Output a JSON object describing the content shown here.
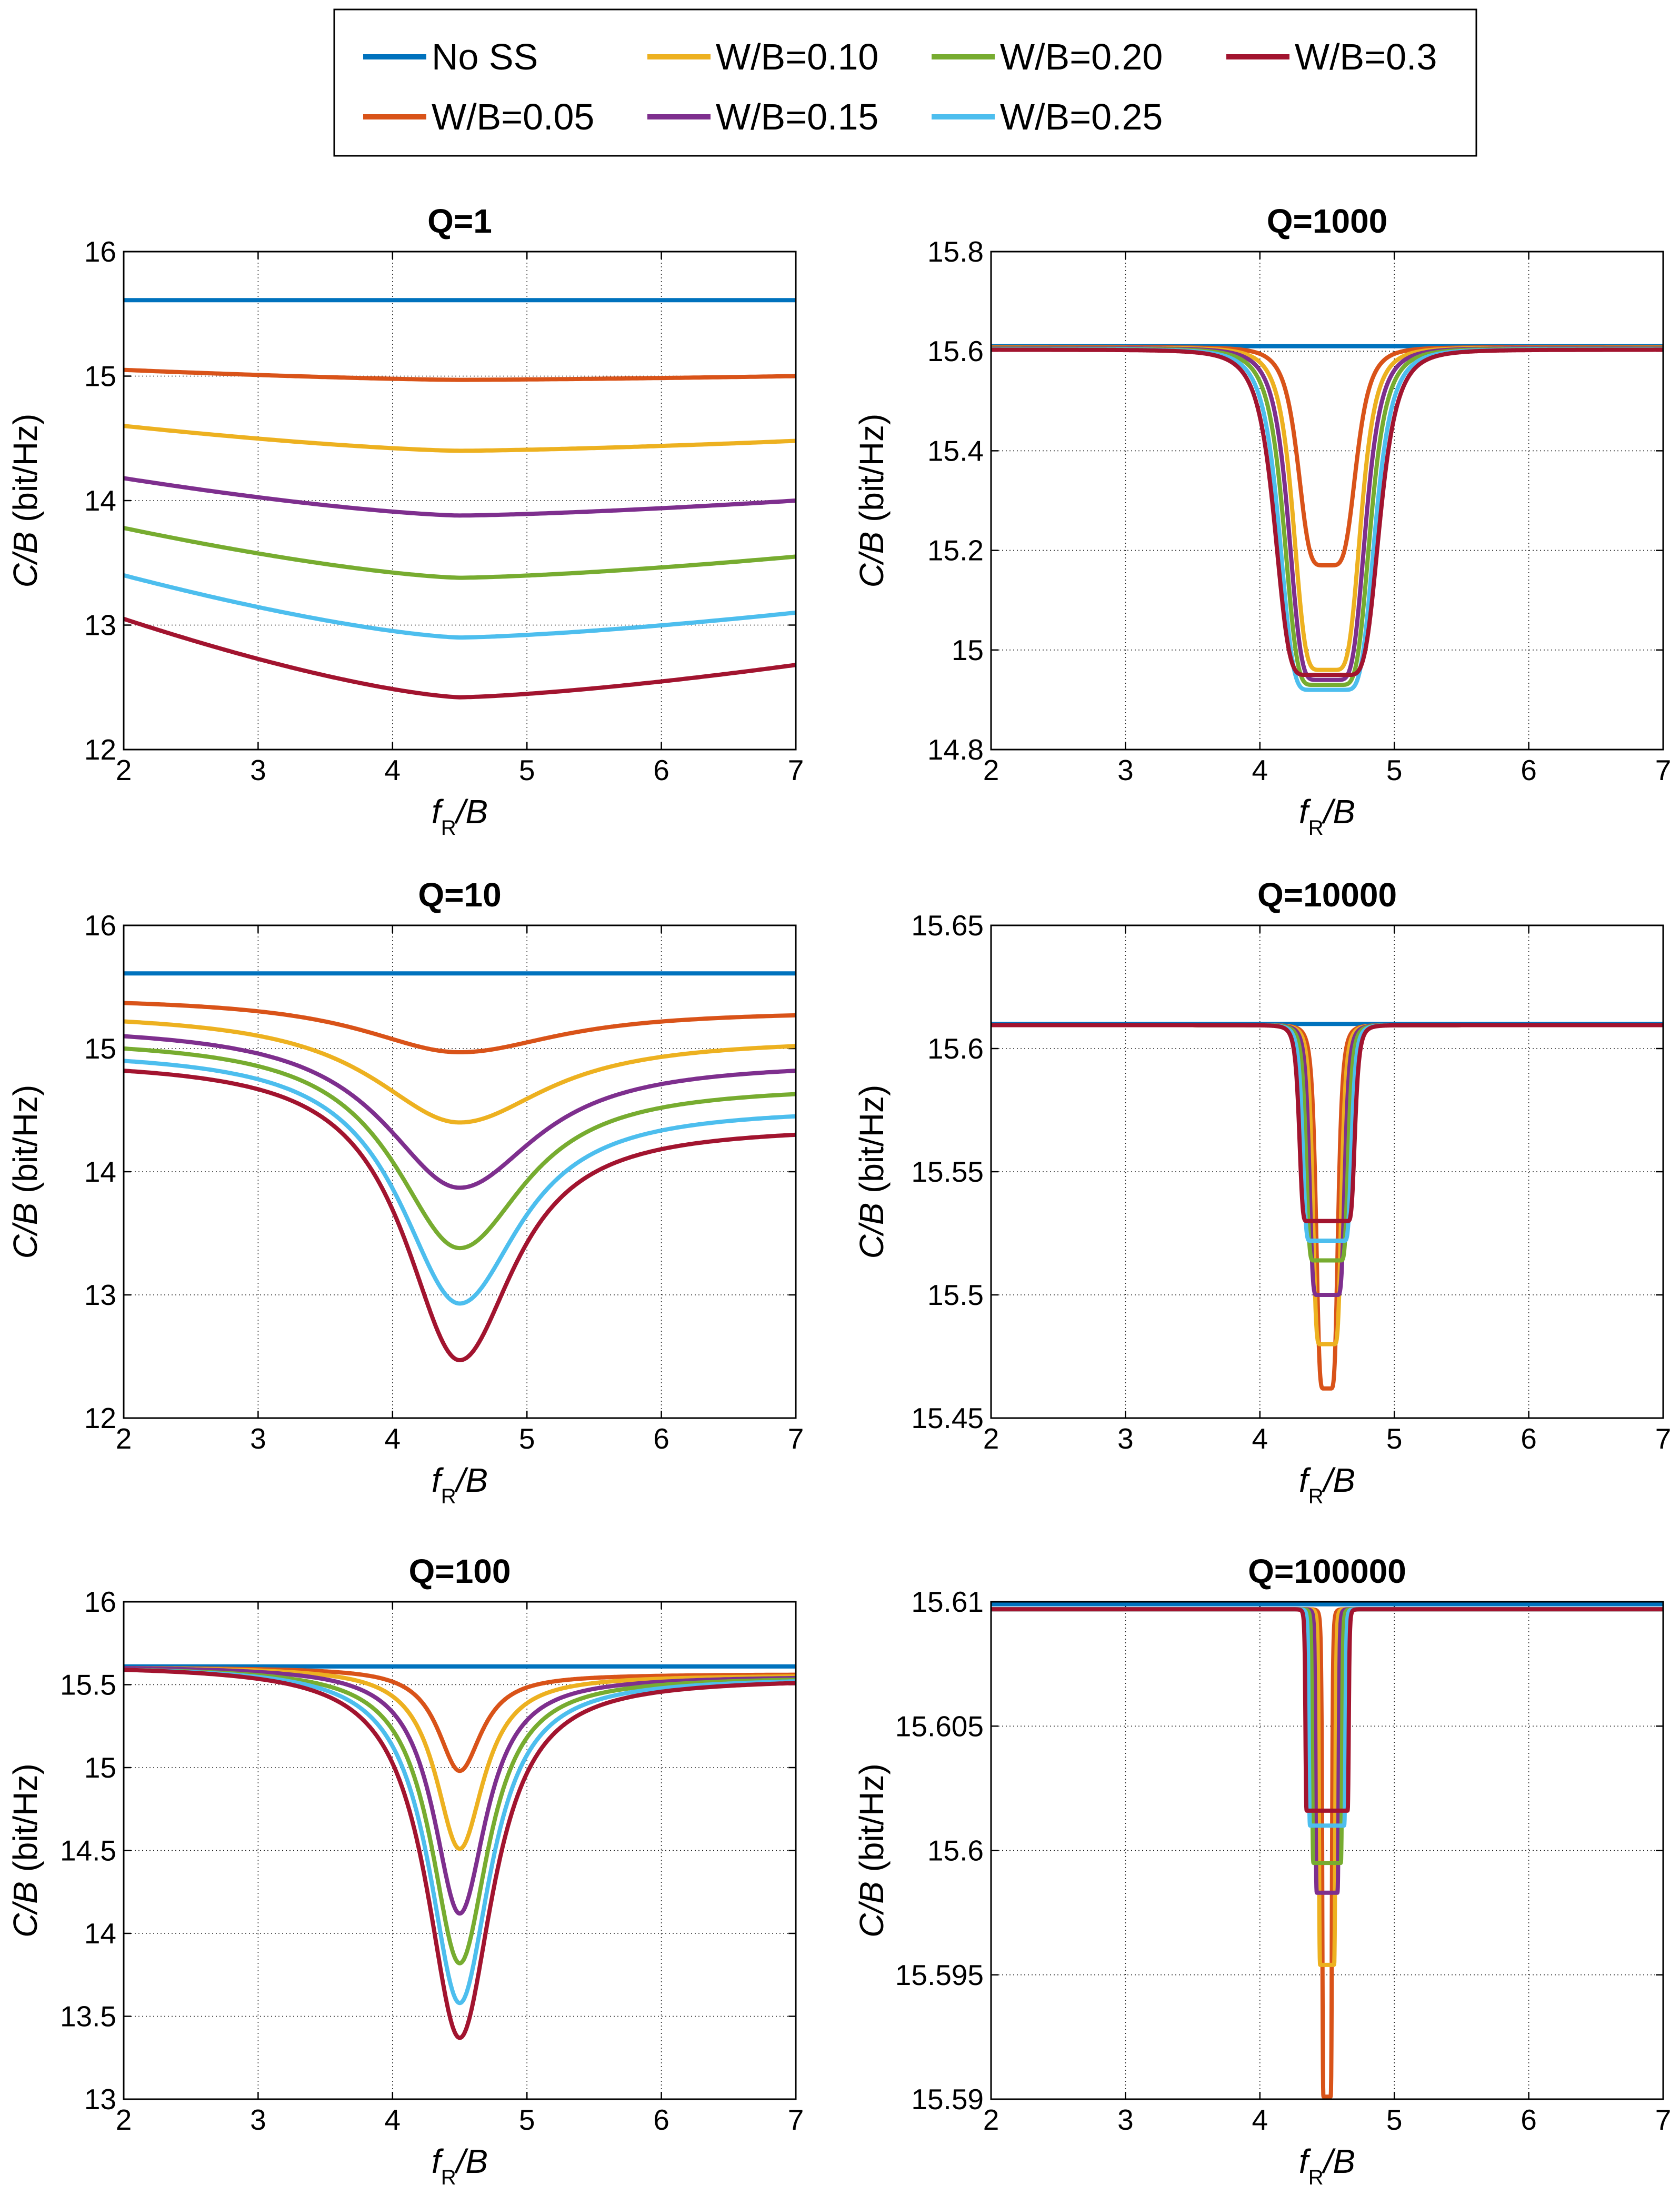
{
  "legend": {
    "entries": [
      {
        "label": "No SS",
        "color": "#0072BD"
      },
      {
        "label": "W/B=0.10",
        "color": "#EDB120"
      },
      {
        "label": "W/B=0.20",
        "color": "#77AC30"
      },
      {
        "label": "W/B=0.3",
        "color": "#A2142F"
      },
      {
        "label": "W/B=0.05",
        "color": "#D95319"
      },
      {
        "label": "W/B=0.15",
        "color": "#7E2F8E"
      },
      {
        "label": "W/B=0.25",
        "color": "#4DBEEE"
      }
    ]
  },
  "chart_data": [
    {
      "type": "line",
      "title": "Q=1",
      "xlabel": "f_R/B",
      "ylabel": "C/B (bit/Hz)",
      "xlim": [
        2,
        7
      ],
      "ylim": [
        12,
        16
      ],
      "xticks": [
        "2",
        "3",
        "4",
        "5",
        "6",
        "7"
      ],
      "yticks": [
        "12",
        "13",
        "14",
        "15",
        "16"
      ],
      "grid": true,
      "series": [
        {
          "name": "No SS",
          "shape": "flat",
          "level": 15.61
        },
        {
          "name": "W/B=0.05",
          "shape": "broad",
          "left": 15.05,
          "min": 14.97,
          "right": 15.0
        },
        {
          "name": "W/B=0.10",
          "shape": "broad",
          "left": 14.6,
          "min": 14.4,
          "right": 14.48
        },
        {
          "name": "W/B=0.15",
          "shape": "broad",
          "left": 14.18,
          "min": 13.88,
          "right": 14.0
        },
        {
          "name": "W/B=0.20",
          "shape": "broad",
          "left": 13.78,
          "min": 13.38,
          "right": 13.55
        },
        {
          "name": "W/B=0.25",
          "shape": "broad",
          "left": 13.4,
          "min": 12.9,
          "right": 13.1
        },
        {
          "name": "W/B=0.3",
          "shape": "broad",
          "left": 13.05,
          "min": 12.42,
          "right": 12.68
        }
      ]
    },
    {
      "type": "line",
      "title": "Q=1000",
      "xlabel": "f_R/B",
      "ylabel": "C/B (bit/Hz)",
      "xlim": [
        2,
        7
      ],
      "ylim": [
        14.8,
        15.8
      ],
      "xticks": [
        "2",
        "3",
        "4",
        "5",
        "6",
        "7"
      ],
      "yticks": [
        "14.8",
        "15",
        "15.2",
        "15.4",
        "15.6",
        "15.8"
      ],
      "grid": true,
      "series": [
        {
          "name": "No SS",
          "shape": "flat",
          "level": 15.61
        },
        {
          "name": "W/B=0.05",
          "shape": "notch",
          "base": 15.608,
          "min": 15.17,
          "halfwidth": 0.025,
          "width": 0.2
        },
        {
          "name": "W/B=0.10",
          "shape": "notch",
          "base": 15.607,
          "min": 14.96,
          "halfwidth": 0.05,
          "width": 0.21
        },
        {
          "name": "W/B=0.15",
          "shape": "notch",
          "base": 15.606,
          "min": 14.94,
          "halfwidth": 0.075,
          "width": 0.22
        },
        {
          "name": "W/B=0.20",
          "shape": "notch",
          "base": 15.605,
          "min": 14.93,
          "halfwidth": 0.1,
          "width": 0.23
        },
        {
          "name": "W/B=0.25",
          "shape": "notch",
          "base": 15.604,
          "min": 14.92,
          "halfwidth": 0.125,
          "width": 0.24
        },
        {
          "name": "W/B=0.3",
          "shape": "notch",
          "base": 15.603,
          "min": 14.95,
          "halfwidth": 0.15,
          "width": 0.25
        }
      ]
    },
    {
      "type": "line",
      "title": "Q=10",
      "xlabel": "f_R/B",
      "ylabel": "C/B (bit/Hz)",
      "xlim": [
        2,
        7
      ],
      "ylim": [
        12,
        16
      ],
      "xticks": [
        "2",
        "3",
        "4",
        "5",
        "6",
        "7"
      ],
      "yticks": [
        "12",
        "13",
        "14",
        "15",
        "16"
      ],
      "grid": true,
      "series": [
        {
          "name": "No SS",
          "shape": "flat",
          "level": 15.61
        },
        {
          "name": "W/B=0.05",
          "shape": "vee",
          "left": 15.37,
          "min": 14.97,
          "right": 15.27,
          "width": 0.9
        },
        {
          "name": "W/B=0.10",
          "shape": "vee",
          "left": 15.22,
          "min": 14.4,
          "right": 15.02,
          "width": 0.8
        },
        {
          "name": "W/B=0.15",
          "shape": "vee",
          "left": 15.1,
          "min": 13.87,
          "right": 14.82,
          "width": 0.7
        },
        {
          "name": "W/B=0.20",
          "shape": "vee",
          "left": 15.0,
          "min": 13.38,
          "right": 14.63,
          "width": 0.6
        },
        {
          "name": "W/B=0.25",
          "shape": "vee",
          "left": 14.9,
          "min": 12.93,
          "right": 14.45,
          "width": 0.55
        },
        {
          "name": "W/B=0.3",
          "shape": "vee",
          "left": 14.82,
          "min": 12.47,
          "right": 14.3,
          "width": 0.5
        }
      ]
    },
    {
      "type": "line",
      "title": "Q=10000",
      "xlabel": "f_R/B",
      "ylabel": "C/B (bit/Hz)",
      "xlim": [
        2,
        7
      ],
      "ylim": [
        15.45,
        15.65
      ],
      "xticks": [
        "2",
        "3",
        "4",
        "5",
        "6",
        "7"
      ],
      "yticks": [
        "15.45",
        "15.5",
        "15.55",
        "15.6",
        "15.65"
      ],
      "grid": true,
      "series": [
        {
          "name": "No SS",
          "shape": "flat",
          "level": 15.61
        },
        {
          "name": "W/B=0.05",
          "shape": "notch",
          "base": 15.6095,
          "min": 15.462,
          "halfwidth": 0.025,
          "width": 0.06
        },
        {
          "name": "W/B=0.10",
          "shape": "notch",
          "base": 15.6095,
          "min": 15.48,
          "halfwidth": 0.05,
          "width": 0.06
        },
        {
          "name": "W/B=0.15",
          "shape": "notch",
          "base": 15.6095,
          "min": 15.5,
          "halfwidth": 0.075,
          "width": 0.06
        },
        {
          "name": "W/B=0.20",
          "shape": "notch",
          "base": 15.6095,
          "min": 15.514,
          "halfwidth": 0.1,
          "width": 0.06
        },
        {
          "name": "W/B=0.25",
          "shape": "notch",
          "base": 15.6095,
          "min": 15.522,
          "halfwidth": 0.125,
          "width": 0.06
        },
        {
          "name": "W/B=0.3",
          "shape": "notch",
          "base": 15.6095,
          "min": 15.53,
          "halfwidth": 0.15,
          "width": 0.06
        }
      ]
    },
    {
      "type": "line",
      "title": "Q=100",
      "xlabel": "f_R/B",
      "ylabel": "C/B (bit/Hz)",
      "xlim": [
        2,
        7
      ],
      "ylim": [
        13,
        16
      ],
      "xticks": [
        "2",
        "3",
        "4",
        "5",
        "6",
        "7"
      ],
      "yticks": [
        "13",
        "13.5",
        "14",
        "14.5",
        "15",
        "15.5",
        "16"
      ],
      "grid": true,
      "series": [
        {
          "name": "No SS",
          "shape": "flat",
          "level": 15.61
        },
        {
          "name": "W/B=0.05",
          "shape": "vee",
          "left": 15.6,
          "min": 14.98,
          "right": 15.56,
          "width": 0.2
        },
        {
          "name": "W/B=0.10",
          "shape": "vee",
          "left": 15.6,
          "min": 14.51,
          "right": 15.55,
          "width": 0.22
        },
        {
          "name": "W/B=0.15",
          "shape": "vee",
          "left": 15.6,
          "min": 14.12,
          "right": 15.54,
          "width": 0.24
        },
        {
          "name": "W/B=0.20",
          "shape": "vee",
          "left": 15.59,
          "min": 13.82,
          "right": 15.53,
          "width": 0.26
        },
        {
          "name": "W/B=0.25",
          "shape": "vee",
          "left": 15.59,
          "min": 13.58,
          "right": 15.52,
          "width": 0.28
        },
        {
          "name": "W/B=0.3",
          "shape": "vee",
          "left": 15.59,
          "min": 13.37,
          "right": 15.51,
          "width": 0.3
        }
      ]
    },
    {
      "type": "line",
      "title": "Q=100000",
      "xlabel": "f_R/B",
      "ylabel": "C/B (bit/Hz)",
      "xlim": [
        2,
        7
      ],
      "ylim": [
        15.59,
        15.61
      ],
      "xticks": [
        "2",
        "3",
        "4",
        "5",
        "6",
        "7"
      ],
      "yticks": [
        "15.59",
        "15.595",
        "15.6",
        "15.605",
        "15.61"
      ],
      "grid": true,
      "series": [
        {
          "name": "No SS",
          "shape": "flat",
          "level": 15.6099
        },
        {
          "name": "W/B=0.05",
          "shape": "notch",
          "base": 15.6097,
          "min": 15.5901,
          "halfwidth": 0.025,
          "width": 0.012
        },
        {
          "name": "W/B=0.10",
          "shape": "notch",
          "base": 15.6097,
          "min": 15.5954,
          "halfwidth": 0.05,
          "width": 0.012
        },
        {
          "name": "W/B=0.15",
          "shape": "notch",
          "base": 15.6097,
          "min": 15.5983,
          "halfwidth": 0.075,
          "width": 0.012
        },
        {
          "name": "W/B=0.20",
          "shape": "notch",
          "base": 15.6097,
          "min": 15.5995,
          "halfwidth": 0.1,
          "width": 0.012
        },
        {
          "name": "W/B=0.25",
          "shape": "notch",
          "base": 15.6097,
          "min": 15.601,
          "halfwidth": 0.125,
          "width": 0.012
        },
        {
          "name": "W/B=0.3",
          "shape": "notch",
          "base": 15.6097,
          "min": 15.6016,
          "halfwidth": 0.15,
          "width": 0.012
        }
      ]
    }
  ]
}
